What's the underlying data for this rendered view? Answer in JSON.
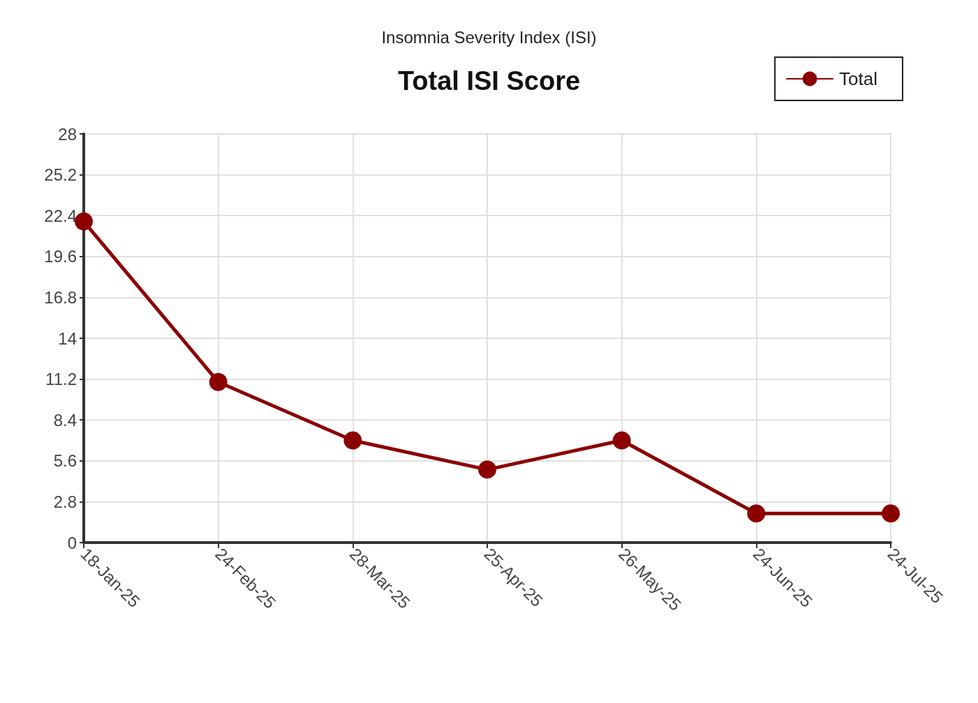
{
  "chart_data": {
    "type": "line",
    "title": "Total ISI Score",
    "subtitle": "Insomnia Severity Index (ISI)",
    "categories": [
      "18-Jan-25",
      "24-Feb-25",
      "28-Mar-25",
      "25-Apr-25",
      "26-May-25",
      "24-Jun-25",
      "24-Jul-25"
    ],
    "series": [
      {
        "name": "Total",
        "color": "#8b0000",
        "values": [
          22,
          11,
          7,
          5,
          7,
          2,
          2
        ]
      }
    ],
    "ylim": [
      0,
      28
    ],
    "yticks": [
      0,
      2.8,
      5.6,
      8.4,
      11.2,
      14,
      16.8,
      19.6,
      22.4,
      25.2,
      28
    ],
    "grid": true,
    "legend": "top right",
    "marker": "circle",
    "line_style": "solid"
  }
}
